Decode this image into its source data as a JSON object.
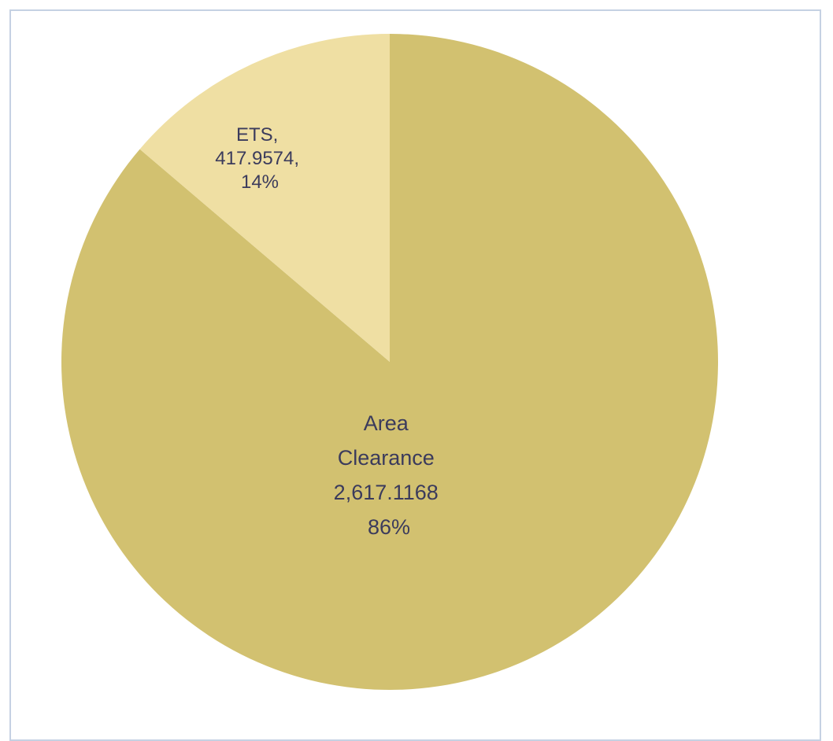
{
  "chart_data": {
    "type": "pie",
    "slices": [
      {
        "category": "Area Clearance",
        "value": 2617.1168,
        "value_label": "2,617.1168",
        "percent_label": "86%",
        "label_lines": [
          "Area",
          "Clearance",
          "2,617.1168",
          "86%"
        ],
        "color": "#d2c170"
      },
      {
        "category": "ETS",
        "value": 417.9574,
        "value_label": "417.9574",
        "percent_label": "14%",
        "label_lines": [
          "ETS,",
          "417.9574,",
          "14%"
        ],
        "color": "#efdfa3"
      }
    ],
    "start_angle": "12 o'clock",
    "direction": "clockwise",
    "legend": "none",
    "colors": {
      "label_text": "#3b3b5c",
      "frame_border": "#c5d1e3"
    }
  }
}
